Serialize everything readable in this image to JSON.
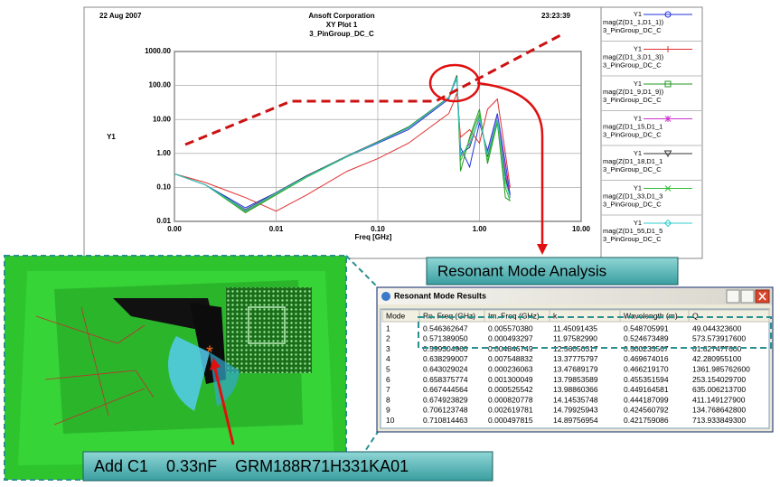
{
  "header": {
    "date": "22 Aug 2007",
    "company": "Ansoft Corporation",
    "time": "23:23:39"
  },
  "chart_data": {
    "type": "line",
    "title": "XY Plot 1",
    "subtitle": "3_PinGroup_DC_C",
    "x_label": "Freq [GHz]",
    "y_label": "Y1",
    "x_log": true,
    "y_log": true,
    "grid": true,
    "xlim": [
      0.001,
      10
    ],
    "ylim": [
      0.01,
      1000
    ],
    "xticks": [
      {
        "value": 0.001,
        "label": "0.00"
      },
      0.01,
      {
        "value": 0.1,
        "label": "0.10"
      },
      {
        "value": 1,
        "label": "1.00"
      },
      {
        "value": 10,
        "label": "10.00"
      }
    ],
    "yticks": [
      {
        "value": 0.01,
        "label": "0.01"
      },
      {
        "value": 0.1,
        "label": "0.10"
      },
      {
        "value": 1,
        "label": "1.00"
      },
      {
        "value": 10,
        "label": "10.00"
      },
      {
        "value": 100,
        "label": "100.00"
      },
      {
        "value": 1000,
        "label": "1000.00"
      }
    ],
    "x": [
      0.001,
      0.002,
      0.005,
      0.01,
      0.02,
      0.05,
      0.1,
      0.2,
      0.5,
      0.55,
      0.6,
      0.65,
      0.8,
      1.0,
      1.2,
      1.5,
      1.8,
      2.0
    ],
    "series": [
      {
        "tag": "Y1",
        "name": "mag(Z(D1_1,D1_1))",
        "source": "3_PinGroup_DC_C",
        "color": "#2233dd",
        "marker": "circle",
        "values": [
          0.25,
          0.12,
          0.025,
          0.07,
          0.22,
          0.8,
          2.0,
          5,
          40,
          90,
          160,
          1.5,
          0.4,
          8,
          1.2,
          15,
          0.5,
          0.06
        ]
      },
      {
        "tag": "Y1",
        "name": "mag(Z(D1_3,D1_3))",
        "source": "3_PinGroup_DC_C",
        "color": "#e03030",
        "marker": "plus",
        "values": [
          0.25,
          0.14,
          0.05,
          0.02,
          0.06,
          0.3,
          0.7,
          2,
          15,
          30,
          60,
          3,
          5,
          2,
          20,
          40,
          1,
          0.1
        ]
      },
      {
        "tag": "Y1",
        "name": "mag(Z(D1_9,D1_9))",
        "source": "3_PinGroup_DC_C",
        "color": "#229922",
        "marker": "square",
        "values": [
          0.25,
          0.12,
          0.018,
          0.06,
          0.2,
          0.8,
          2.2,
          6,
          45,
          100,
          200,
          0.3,
          3,
          20,
          0.5,
          8,
          0.05,
          0.04
        ]
      },
      {
        "tag": "Y1",
        "name": "mag(Z(D1_15,D1_1",
        "source": "3_PinGroup_DC_C",
        "color": "#cc33cc",
        "marker": "star",
        "values": [
          0.25,
          0.12,
          0.02,
          0.065,
          0.21,
          0.8,
          2.1,
          5.5,
          42,
          95,
          180,
          0.8,
          2,
          10,
          1,
          12,
          0.3,
          0.05
        ]
      },
      {
        "tag": "Y1",
        "name": "mag(Z(D1_18,D1_1",
        "source": "3_PinGroup_DC_C",
        "color": "#333333",
        "marker": "triangle",
        "values": [
          0.25,
          0.12,
          0.022,
          0.07,
          0.22,
          0.85,
          2.2,
          5.8,
          44,
          98,
          190,
          1,
          1.5,
          12,
          0.8,
          10,
          0.2,
          0.05
        ]
      },
      {
        "tag": "Y1",
        "name": "mag(Z(D1_33,D1_3",
        "source": "3_PinGroup_DC_C",
        "color": "#33bb33",
        "marker": "cross",
        "values": [
          0.25,
          0.12,
          0.019,
          0.062,
          0.2,
          0.8,
          2.1,
          5.6,
          43,
          96,
          170,
          0.6,
          2.5,
          15,
          0.6,
          9,
          0.1,
          0.04
        ]
      },
      {
        "tag": "Y1",
        "name": "mag(Z(D1_55,D1_5",
        "source": "3_PinGroup_DC_C",
        "color": "#33cccc",
        "marker": "diamond",
        "values": [
          0.25,
          0.12,
          0.021,
          0.068,
          0.21,
          0.82,
          2.1,
          5.7,
          43,
          97,
          175,
          0.9,
          1.8,
          11,
          0.9,
          11,
          0.15,
          0.05
        ]
      }
    ]
  },
  "callout": "Resonant Mode Analysis",
  "results_window": {
    "title": "Resonant Mode Results",
    "columns": [
      "Mode",
      "Re. Freq (GHz)",
      "Im. Freq (GHz)",
      "k",
      "Wavelength (m)",
      "Q"
    ],
    "rows": [
      [
        "1",
        "0.546362647",
        "0.005570380",
        "11.45091435",
        "0.548705991",
        "49.044323600"
      ],
      [
        "2",
        "0.571389050",
        "0.000493297",
        "11.97582990",
        "0.524673489",
        "573.573917600"
      ],
      [
        "3",
        "0.599304960",
        "0.004846749",
        "12.56050317",
        "0.500233567",
        "61.827477600"
      ],
      [
        "4",
        "0.638299007",
        "0.007548832",
        "13.37775797",
        "0.469674016",
        "42.280955100"
      ],
      [
        "5",
        "0.643029024",
        "0.000236063",
        "13.47689179",
        "0.466219170",
        "1361.985762600"
      ],
      [
        "6",
        "0.658375774",
        "0.001300049",
        "13.79853589",
        "0.455351594",
        "253.154029700"
      ],
      [
        "7",
        "0.667444564",
        "0.000525542",
        "13.98860366",
        "0.449164581",
        "635.006213700"
      ],
      [
        "8",
        "0.674923829",
        "0.000820778",
        "14.14535748",
        "0.444187099",
        "411.149127900"
      ],
      [
        "9",
        "0.706123748",
        "0.002619781",
        "14.79925943",
        "0.424560792",
        "134.768642800"
      ],
      [
        "10",
        "0.710814463",
        "0.000497815",
        "14.89756954",
        "0.421759086",
        "713.933849300"
      ]
    ]
  },
  "caption": "Add C1    0.33nF    GRM188R71H331KA01"
}
